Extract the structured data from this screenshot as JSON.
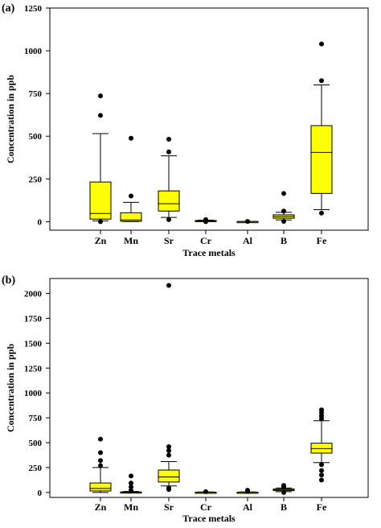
{
  "chart_data": [
    {
      "panel_label": "(a)",
      "type": "box",
      "xlabel": "Trace metals",
      "ylabel": "Concentration in ppb",
      "ylim": [
        -50,
        1250
      ],
      "yticks": [
        0,
        250,
        500,
        750,
        1000,
        1250
      ],
      "box_color": "#ffff00",
      "categories": [
        "Zn",
        "Mn",
        "Sr",
        "Cr",
        "Al",
        "B",
        "Fe"
      ],
      "boxes": [
        {
          "name": "Zn",
          "whisker_low": 5,
          "q1": 15,
          "median": 48,
          "q3": 232,
          "whisker_high": 515,
          "outliers": [
            0,
            622,
            736
          ]
        },
        {
          "name": "Mn",
          "whisker_low": 0,
          "q1": 2,
          "median": 10,
          "q3": 52,
          "whisker_high": 113,
          "outliers": [
            150,
            488
          ]
        },
        {
          "name": "Sr",
          "whisker_low": 25,
          "q1": 62,
          "median": 105,
          "q3": 180,
          "whisker_high": 385,
          "outliers": [
            12,
            408,
            482
          ]
        },
        {
          "name": "Cr",
          "whisker_low": 1,
          "q1": 3,
          "median": 5,
          "q3": 7,
          "whisker_high": 9,
          "outliers": [
            0,
            12
          ]
        },
        {
          "name": "Al",
          "whisker_low": 0,
          "q1": 0,
          "median": 1,
          "q3": 1,
          "whisker_high": 2,
          "outliers": [
            1
          ]
        },
        {
          "name": "B",
          "whisker_low": 10,
          "q1": 20,
          "median": 30,
          "q3": 40,
          "whisker_high": 55,
          "outliers": [
            2,
            62,
            165
          ]
        },
        {
          "name": "Fe",
          "whisker_low": 70,
          "q1": 165,
          "median": 405,
          "q3": 562,
          "whisker_high": 800,
          "outliers": [
            50,
            825,
            1040
          ]
        }
      ]
    },
    {
      "panel_label": "(b)",
      "type": "box",
      "xlabel": "Trace metals",
      "ylabel": "Concentration in ppb",
      "ylim": [
        -50,
        2150
      ],
      "yticks": [
        0,
        250,
        500,
        750,
        1000,
        1250,
        1500,
        1750,
        2000
      ],
      "box_color": "#ffff00",
      "categories": [
        "Zn",
        "Mn",
        "Sr",
        "Cr",
        "Al",
        "B",
        "Fe"
      ],
      "boxes": [
        {
          "name": "Zn",
          "whisker_low": 0,
          "q1": 15,
          "median": 40,
          "q3": 95,
          "whisker_high": 250,
          "outliers": [
            270,
            320,
            400,
            535
          ]
        },
        {
          "name": "Mn",
          "whisker_low": 0,
          "q1": 0,
          "median": 2,
          "q3": 5,
          "whisker_high": 10,
          "outliers": [
            20,
            55,
            95,
            165
          ]
        },
        {
          "name": "Sr",
          "whisker_low": 65,
          "q1": 105,
          "median": 155,
          "q3": 225,
          "whisker_high": 310,
          "outliers": [
            30,
            45,
            375,
            420,
            460,
            2080
          ]
        },
        {
          "name": "Cr",
          "whisker_low": 0,
          "q1": 1,
          "median": 2,
          "q3": 3,
          "whisker_high": 5,
          "outliers": [
            8
          ]
        },
        {
          "name": "Al",
          "whisker_low": 0,
          "q1": 1,
          "median": 2,
          "q3": 3,
          "whisker_high": 5,
          "outliers": [
            10,
            22
          ]
        },
        {
          "name": "B",
          "whisker_low": 8,
          "q1": 18,
          "median": 25,
          "q3": 35,
          "whisker_high": 45,
          "outliers": [
            0,
            55,
            70
          ]
        },
        {
          "name": "Fe",
          "whisker_low": 300,
          "q1": 395,
          "median": 440,
          "q3": 495,
          "whisker_high": 720,
          "outliers": [
            125,
            175,
            220,
            280,
            740,
            770,
            800,
            830
          ]
        }
      ]
    }
  ]
}
